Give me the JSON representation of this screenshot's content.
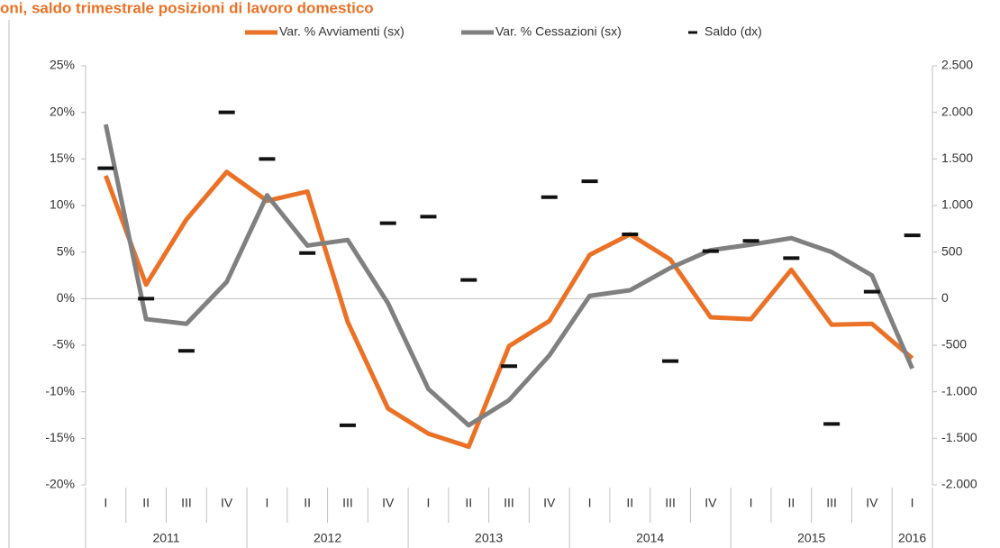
{
  "chart_data": {
    "type": "line",
    "title": "oni, saldo trimestrale posizioni di lavoro domestico",
    "categories": [
      "I",
      "II",
      "III",
      "IV",
      "I",
      "II",
      "III",
      "IV",
      "I",
      "II",
      "III",
      "IV",
      "I",
      "II",
      "III",
      "IV",
      "I",
      "II",
      "III",
      "IV",
      "I"
    ],
    "years": [
      "2011",
      "2012",
      "2013",
      "2014",
      "2015",
      "2016"
    ],
    "series": [
      {
        "name": "Var. % Avviamenti (sx)",
        "color": "#ea7125",
        "values": [
          13.2,
          1.5,
          8.5,
          13.6,
          10.5,
          11.5,
          -2.5,
          -11.8,
          -14.5,
          -15.9,
          -5.1,
          -2.4,
          4.7,
          6.9,
          4.2,
          -2.0,
          -2.2,
          3.1,
          -2.8,
          -2.7,
          -6.4
        ]
      },
      {
        "name": "Var. % Cessazioni (sx)",
        "color": "#808080",
        "values": [
          18.7,
          -2.2,
          -2.7,
          1.8,
          11.1,
          5.7,
          6.3,
          -0.5,
          -9.7,
          -13.6,
          -10.9,
          -6.1,
          0.3,
          0.9,
          3.3,
          5.2,
          5.8,
          6.5,
          5.0,
          2.5,
          -7.5
        ]
      },
      {
        "name": "Saldo (dx)",
        "color": "#111111",
        "axis": "y2",
        "marker": "dash",
        "values": [
          1400,
          0,
          -560,
          2000,
          1500,
          490,
          -1360,
          810,
          880,
          200,
          -725,
          1090,
          1260,
          690,
          -670,
          510,
          620,
          435,
          -1345,
          75,
          680
        ]
      }
    ],
    "ylim": [
      -20,
      25
    ],
    "yticks": [
      {
        "value": -20,
        "label": "-20%"
      },
      {
        "value": -15,
        "label": "-15%"
      },
      {
        "value": -10,
        "label": "-10%"
      },
      {
        "value": -5,
        "label": "-5%"
      },
      {
        "value": 0,
        "label": "0%"
      },
      {
        "value": 5,
        "label": "5%"
      },
      {
        "value": 10,
        "label": "10%"
      },
      {
        "value": 15,
        "label": "15%"
      },
      {
        "value": 20,
        "label": "20%"
      },
      {
        "value": 25,
        "label": "25%"
      }
    ],
    "y2lim": [
      -2000,
      2500
    ],
    "y2ticks": [
      {
        "value": -2000,
        "label": "-2.000"
      },
      {
        "value": -1500,
        "label": "-1.500"
      },
      {
        "value": -1000,
        "label": "-1.000"
      },
      {
        "value": -500,
        "label": "-500"
      },
      0,
      {
        "value": 500,
        "label": "500"
      },
      {
        "value": 1000,
        "label": "1.000"
      },
      {
        "value": 1500,
        "label": "1.500"
      },
      {
        "value": 2000,
        "label": "2.000"
      },
      {
        "value": 2500,
        "label": "2.500"
      }
    ],
    "legend": "top"
  }
}
